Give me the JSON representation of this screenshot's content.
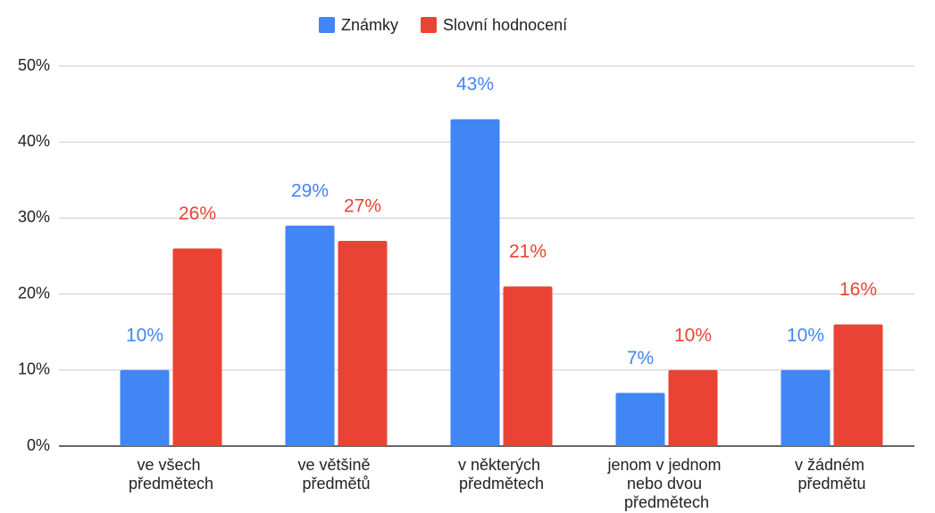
{
  "chart_data": {
    "type": "bar",
    "categories": [
      "ve všech předmětech",
      "ve většině předmětů",
      "v některých předmětech",
      "jenom v jednom nebo dvou předmětech",
      "v žádném předmětu"
    ],
    "series": [
      {
        "name": "Známky",
        "color": "#4285f4",
        "values": [
          10,
          29,
          43,
          7,
          10
        ],
        "value_labels": [
          "10%",
          "29%",
          "43%",
          "7%",
          "10%"
        ]
      },
      {
        "name": "Slovní hodnocení",
        "color": "#ea4335",
        "values": [
          26,
          27,
          21,
          10,
          16
        ],
        "value_labels": [
          "26%",
          "27%",
          "21%",
          "10%",
          "16%"
        ]
      }
    ],
    "ylim": [
      0,
      50
    ],
    "yticks": [
      {
        "value": 0,
        "label": "0%"
      },
      {
        "value": 10,
        "label": "10%"
      },
      {
        "value": 20,
        "label": "20%"
      },
      {
        "value": 30,
        "label": "30%"
      },
      {
        "value": 40,
        "label": "40%"
      },
      {
        "value": 50,
        "label": "50%"
      }
    ],
    "grid": true,
    "legend": "top"
  }
}
